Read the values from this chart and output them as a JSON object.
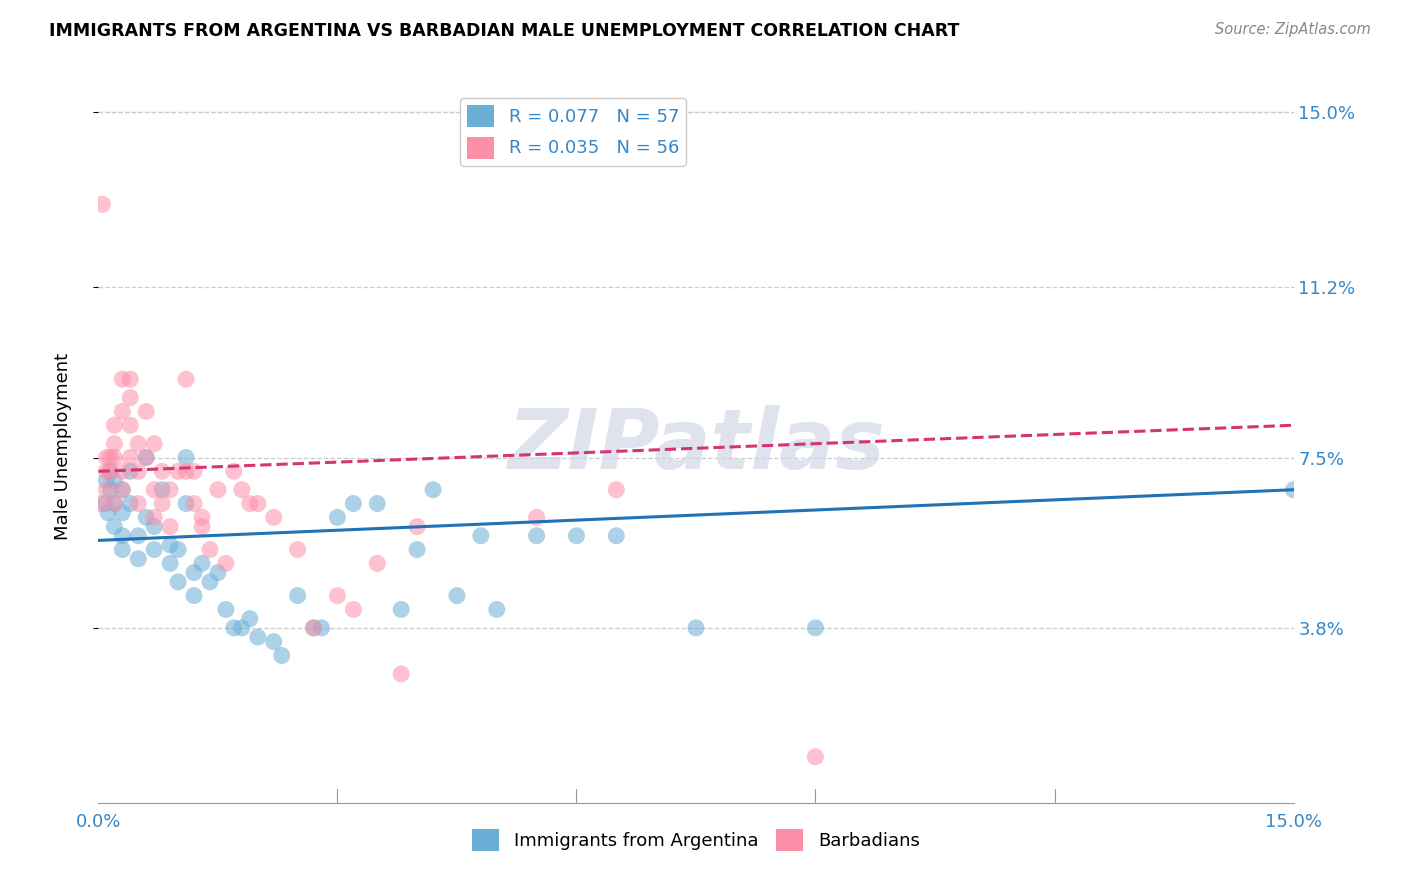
{
  "title": "IMMIGRANTS FROM ARGENTINA VS BARBADIAN MALE UNEMPLOYMENT CORRELATION CHART",
  "source": "Source: ZipAtlas.com",
  "ylabel": "Male Unemployment",
  "ytick_vals": [
    0.038,
    0.075,
    0.112,
    0.15
  ],
  "ytick_labels": [
    "3.8%",
    "7.5%",
    "11.2%",
    "15.0%"
  ],
  "xtick_vals": [
    0.0,
    0.15
  ],
  "xtick_labels": [
    "0.0%",
    "15.0%"
  ],
  "xrange": [
    0.0,
    0.15
  ],
  "yrange": [
    0.0,
    0.155
  ],
  "legend1_R": "0.077",
  "legend1_N": "57",
  "legend2_R": "0.035",
  "legend2_N": "56",
  "color_blue": "#6baed6",
  "color_pink": "#fc8fa8",
  "color_blue_line": "#2171b5",
  "color_pink_line": "#d63475",
  "watermark": "ZIPatlas",
  "blue_points_x": [
    0.0008,
    0.001,
    0.0012,
    0.0015,
    0.0015,
    0.002,
    0.002,
    0.002,
    0.003,
    0.003,
    0.003,
    0.003,
    0.004,
    0.004,
    0.005,
    0.005,
    0.006,
    0.006,
    0.007,
    0.007,
    0.008,
    0.009,
    0.009,
    0.01,
    0.01,
    0.011,
    0.011,
    0.012,
    0.012,
    0.013,
    0.014,
    0.015,
    0.016,
    0.017,
    0.018,
    0.019,
    0.02,
    0.022,
    0.023,
    0.025,
    0.027,
    0.028,
    0.03,
    0.032,
    0.035,
    0.038,
    0.04,
    0.042,
    0.045,
    0.048,
    0.05,
    0.055,
    0.06,
    0.065,
    0.075,
    0.09,
    0.15
  ],
  "blue_points_y": [
    0.065,
    0.07,
    0.063,
    0.068,
    0.072,
    0.06,
    0.065,
    0.07,
    0.058,
    0.063,
    0.068,
    0.055,
    0.065,
    0.072,
    0.053,
    0.058,
    0.062,
    0.075,
    0.055,
    0.06,
    0.068,
    0.052,
    0.056,
    0.048,
    0.055,
    0.075,
    0.065,
    0.045,
    0.05,
    0.052,
    0.048,
    0.05,
    0.042,
    0.038,
    0.038,
    0.04,
    0.036,
    0.035,
    0.032,
    0.045,
    0.038,
    0.038,
    0.062,
    0.065,
    0.065,
    0.042,
    0.055,
    0.068,
    0.045,
    0.058,
    0.042,
    0.058,
    0.058,
    0.058,
    0.038,
    0.038,
    0.068
  ],
  "pink_points_x": [
    0.0003,
    0.0005,
    0.001,
    0.001,
    0.001,
    0.0015,
    0.0015,
    0.002,
    0.002,
    0.002,
    0.002,
    0.003,
    0.003,
    0.003,
    0.003,
    0.004,
    0.004,
    0.004,
    0.004,
    0.005,
    0.005,
    0.005,
    0.006,
    0.006,
    0.007,
    0.007,
    0.007,
    0.008,
    0.008,
    0.009,
    0.009,
    0.01,
    0.011,
    0.011,
    0.012,
    0.012,
    0.013,
    0.013,
    0.014,
    0.015,
    0.016,
    0.017,
    0.018,
    0.019,
    0.02,
    0.022,
    0.025,
    0.027,
    0.03,
    0.032,
    0.035,
    0.038,
    0.04,
    0.055,
    0.065,
    0.09
  ],
  "pink_points_y": [
    0.065,
    0.13,
    0.068,
    0.072,
    0.075,
    0.072,
    0.075,
    0.075,
    0.078,
    0.082,
    0.065,
    0.092,
    0.085,
    0.072,
    0.068,
    0.092,
    0.088,
    0.082,
    0.075,
    0.078,
    0.072,
    0.065,
    0.085,
    0.075,
    0.078,
    0.068,
    0.062,
    0.072,
    0.065,
    0.06,
    0.068,
    0.072,
    0.092,
    0.072,
    0.072,
    0.065,
    0.062,
    0.06,
    0.055,
    0.068,
    0.052,
    0.072,
    0.068,
    0.065,
    0.065,
    0.062,
    0.055,
    0.038,
    0.045,
    0.042,
    0.052,
    0.028,
    0.06,
    0.062,
    0.068,
    0.01
  ],
  "blue_line_x0": 0.0,
  "blue_line_y0": 0.057,
  "blue_line_x1": 0.15,
  "blue_line_y1": 0.068,
  "pink_line_x0": 0.0,
  "pink_line_y0": 0.072,
  "pink_line_x1": 0.15,
  "pink_line_y1": 0.082
}
